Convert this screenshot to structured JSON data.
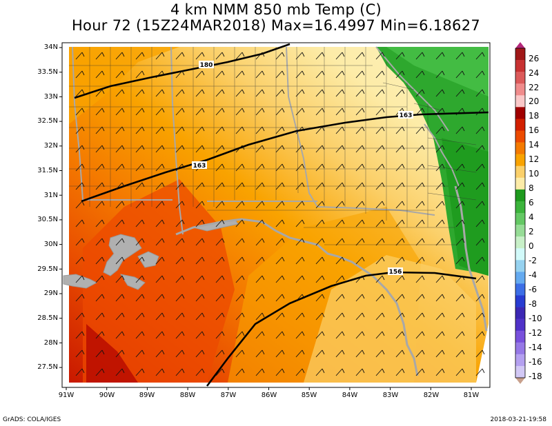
{
  "title": {
    "line1": "4 km NMM 850 mb Temp (C)",
    "line2": "Hour 72 (15Z24MAR2018) Max=16.4997 Min=6.18627"
  },
  "axes": {
    "lat_labels": [
      "34N",
      "33.5N",
      "33N",
      "32.5N",
      "32N",
      "31.5N",
      "31N",
      "30.5N",
      "30N",
      "29.5N",
      "29N",
      "28.5N",
      "28N",
      "27.5N"
    ],
    "lon_labels": [
      "91W",
      "90W",
      "89W",
      "88W",
      "87W",
      "86W",
      "85W",
      "84W",
      "83W",
      "82W",
      "81W"
    ]
  },
  "contours": [
    "180",
    "163",
    "163",
    "156"
  ],
  "colorbar": {
    "labels": [
      "26",
      "24",
      "22",
      "20",
      "18",
      "16",
      "14",
      "12",
      "10",
      "8",
      "6",
      "4",
      "2",
      "0",
      "-2",
      "-4",
      "-6",
      "-8",
      "-10",
      "-12",
      "-14",
      "-16",
      "-18"
    ],
    "colors": [
      "#a01818",
      "#c83232",
      "#dc5a5a",
      "#f08c8c",
      "#fac8c8",
      "#a00000",
      "#d22000",
      "#ec4a00",
      "#f47a00",
      "#f9a300",
      "#fbd06a",
      "#fdeca8",
      "#1e9a1e",
      "#3cb43c",
      "#64c864",
      "#96dc96",
      "#c8f0c8",
      "#d2fafa",
      "#96d2f0",
      "#64aaf0",
      "#3c6ee6",
      "#283cd2",
      "#3c28b4",
      "#5032c8",
      "#7850dc",
      "#9678e6",
      "#b4a0f0",
      "#d2c8f5"
    ]
  },
  "footer": {
    "left": "GrADS: COLA/IGES",
    "right": "2018-03-21-19:58"
  }
}
